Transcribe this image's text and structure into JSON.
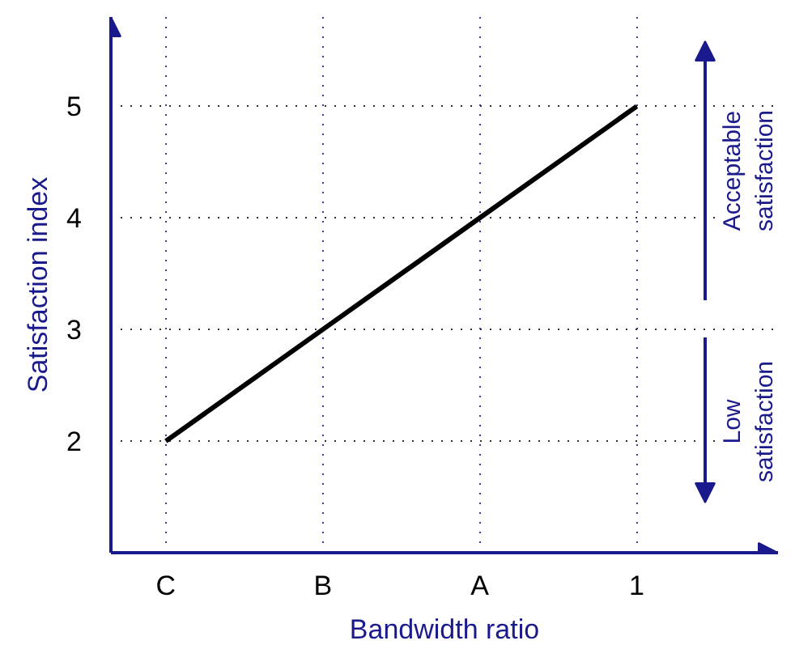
{
  "chart_data": {
    "type": "line",
    "xlabel": "Bandwidth ratio",
    "ylabel": "Satisfaction index",
    "categories": [
      "C",
      "B",
      "A",
      "1"
    ],
    "series": [
      {
        "color": "#000000",
        "values": [
          2,
          3,
          4,
          5
        ]
      }
    ],
    "ylim": [
      1,
      5.8
    ],
    "yticks": [
      2,
      3,
      4,
      5
    ],
    "grid": true,
    "line_style": "solid",
    "annotations": [
      "Acceptable satisfaction",
      "Low satisfaction"
    ]
  }
}
